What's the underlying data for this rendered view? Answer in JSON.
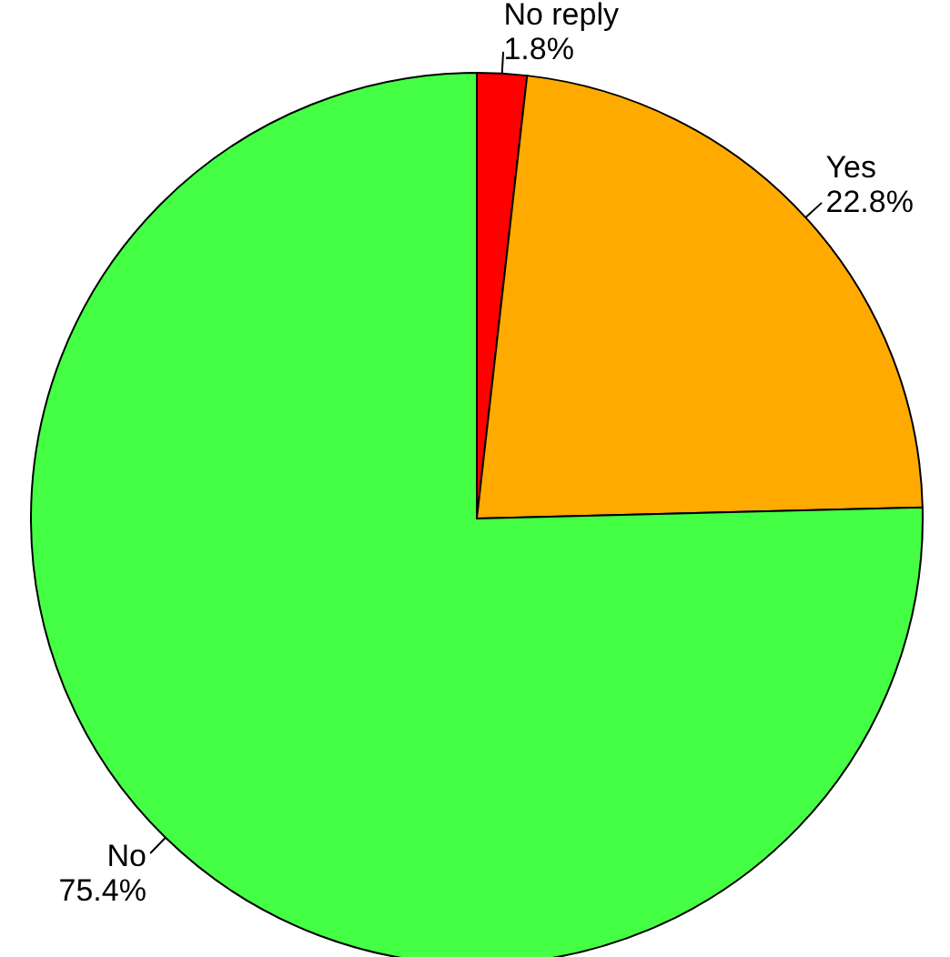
{
  "chart_data": {
    "type": "pie",
    "categories": [
      "No reply",
      "Yes",
      "No"
    ],
    "values": [
      1.8,
      22.8,
      75.4
    ],
    "value_labels": [
      "1.8%",
      "22.8%",
      "75.4%"
    ],
    "colors": [
      "#ff0000",
      "#ffaa00",
      "#44ff44"
    ]
  }
}
